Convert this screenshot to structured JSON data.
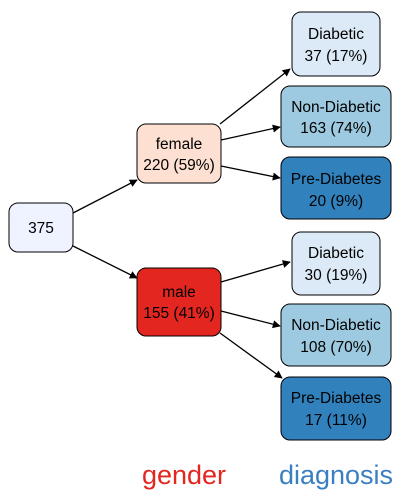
{
  "palette": {
    "edge": "#000000",
    "root_fill": "#eef3ff",
    "female_fill": "#fde0d2",
    "male_fill": "#e3261f",
    "diabetic_fill": "#dce9f6",
    "non_diabetic_fill": "#9ecae1",
    "pre_diabetes_fill": "#3181bd",
    "gender_label_color": "#e3261f",
    "diagnosis_label_color": "#3a7fc1"
  },
  "tree": {
    "root": {
      "count": "375"
    },
    "female": {
      "label": "female",
      "count": "220 (59%)",
      "children": [
        {
          "label": "Diabetic",
          "count": "37 (17%)"
        },
        {
          "label": "Non-Diabetic",
          "count": "163 (74%)"
        },
        {
          "label": "Pre-Diabetes",
          "count": "20 (9%)"
        }
      ]
    },
    "male": {
      "label": "male",
      "count": "155 (41%)",
      "children": [
        {
          "label": "Diabetic",
          "count": "30 (19%)"
        },
        {
          "label": "Non-Diabetic",
          "count": "108 (70%)"
        },
        {
          "label": "Pre-Diabetes",
          "count": "17 (11%)"
        }
      ]
    }
  },
  "level_labels": {
    "gender": "gender",
    "diagnosis": "diagnosis"
  }
}
